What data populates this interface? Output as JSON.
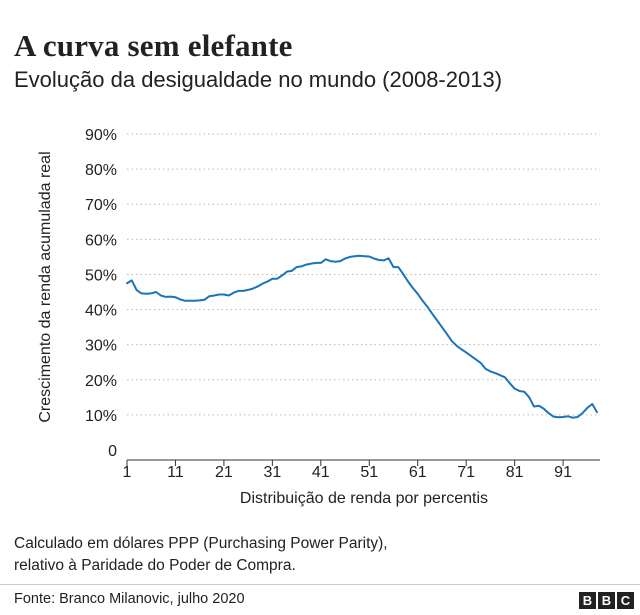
{
  "header": {
    "title": "A curva sem elefante",
    "subtitle": "Evolução da desigualdade no mundo (2008-2013)"
  },
  "note": {
    "line1": "Calculado em dólares PPP (Purchasing Power Parity),",
    "line2": "relativo à Paridade do Poder de Compra."
  },
  "footer": {
    "source": "Fonte: Branco Milanovic, julho 2020",
    "logo_letters": [
      "B",
      "B",
      "C"
    ]
  },
  "colors": {
    "line": "#1a74b8",
    "grid": "#bbbbbb",
    "axis": "#333333",
    "text": "#222222"
  },
  "chart_data": {
    "type": "line",
    "xlabel": "Distribuição de renda por percentis",
    "ylabel": "Crescimento da renda acumulada real",
    "xlim": [
      1,
      98
    ],
    "ylim": [
      0,
      90
    ],
    "x_ticks": [
      1,
      11,
      21,
      31,
      41,
      51,
      61,
      71,
      81,
      91
    ],
    "x_tick_labels": [
      "1",
      "11",
      "21",
      "31",
      "41",
      "51",
      "61",
      "71",
      "81",
      "91"
    ],
    "y_ticks": [
      0,
      10,
      20,
      30,
      40,
      50,
      60,
      70,
      80,
      90
    ],
    "y_tick_labels": [
      "0",
      "10%",
      "20%",
      "30%",
      "40%",
      "50%",
      "60%",
      "70%",
      "80%",
      "90%"
    ],
    "grid": "horizontal dotted",
    "series": [
      {
        "x": [
          1,
          2,
          3,
          4,
          5,
          6,
          7,
          8,
          9,
          10,
          11,
          12,
          13,
          14,
          15,
          16,
          17,
          18,
          19,
          20,
          21,
          22,
          23,
          24,
          25,
          26,
          27,
          28,
          29,
          30,
          31,
          32,
          33,
          34,
          35,
          36,
          37,
          38,
          39,
          40,
          41,
          42,
          43,
          44,
          45,
          46,
          47,
          48,
          49,
          50,
          51,
          52,
          53,
          54,
          55,
          56,
          57,
          58,
          59,
          60,
          61,
          62,
          63,
          64,
          65,
          66,
          67,
          68,
          69,
          70,
          71,
          72,
          73,
          74,
          75,
          76,
          77,
          78,
          79,
          80,
          81,
          82,
          83,
          84,
          85,
          86,
          87,
          88,
          89,
          90,
          91,
          92,
          93,
          94,
          95,
          96,
          97,
          98
        ],
        "y": [
          47.5,
          48.3,
          45.5,
          44.6,
          44.5,
          44.6,
          45.0,
          44.0,
          43.6,
          43.7,
          43.5,
          42.9,
          42.5,
          42.5,
          42.5,
          42.6,
          42.8,
          43.8,
          44.0,
          44.3,
          44.3,
          44.0,
          44.8,
          45.3,
          45.3,
          45.6,
          46.0,
          46.6,
          47.4,
          48.0,
          48.8,
          48.8,
          49.7,
          50.8,
          51.0,
          52.1,
          52.3,
          52.8,
          53.1,
          53.3,
          53.3,
          54.3,
          53.8,
          53.6,
          53.8,
          54.5,
          55.0,
          55.2,
          55.3,
          55.2,
          55.1,
          54.5,
          54.1,
          54.0,
          54.6,
          52.1,
          52.1,
          50.1,
          48.0,
          46.1,
          44.5,
          42.5,
          40.8,
          38.8,
          36.9,
          35.0,
          33.1,
          31.1,
          29.7,
          28.7,
          27.8,
          26.8,
          25.8,
          24.8,
          23.1,
          22.4,
          21.9,
          21.3,
          20.7,
          19.0,
          17.5,
          16.8,
          16.6,
          15.0,
          12.4,
          12.6,
          11.8,
          10.5,
          9.5,
          9.3,
          9.4,
          9.6,
          9.2,
          9.4,
          10.5,
          12.0,
          13.1,
          10.8
        ]
      }
    ]
  }
}
